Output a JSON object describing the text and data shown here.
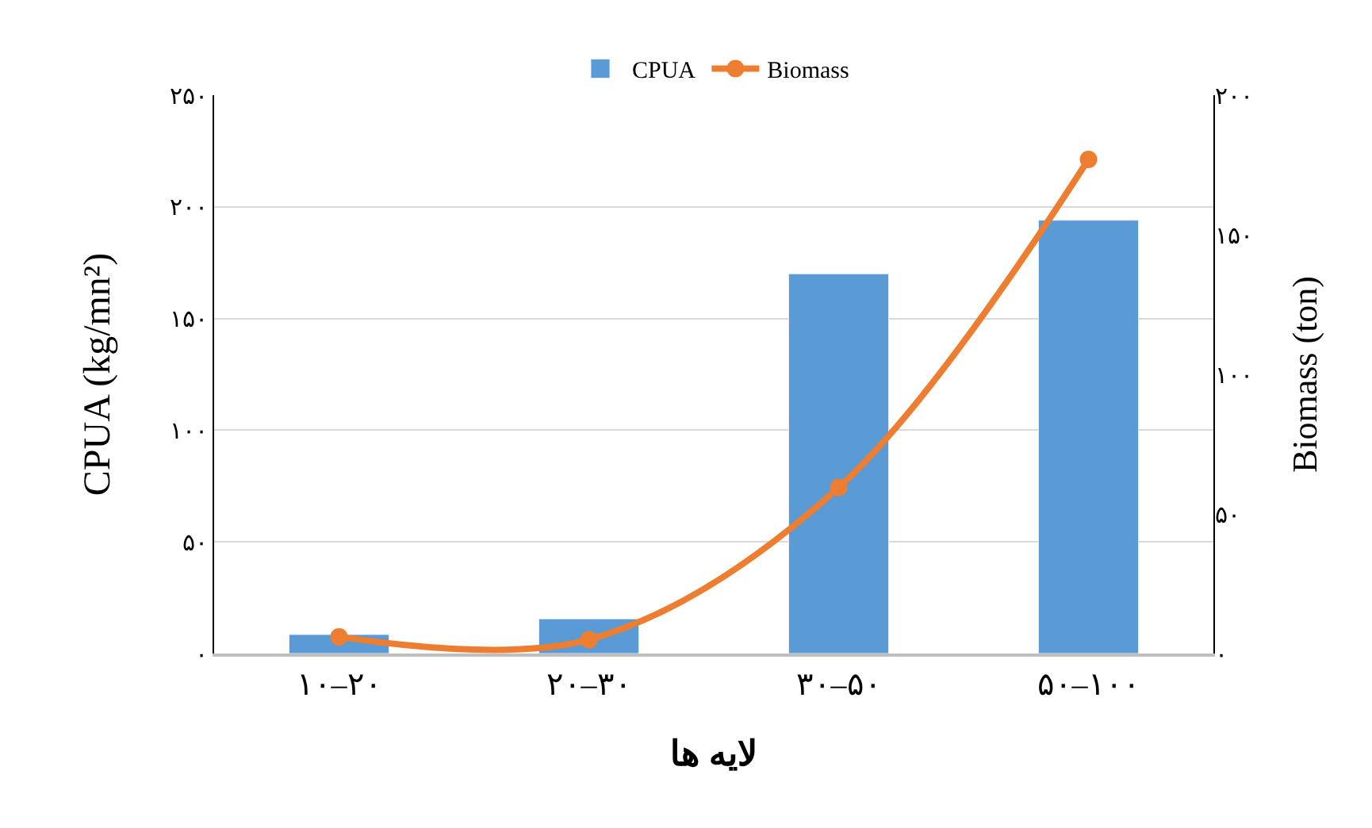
{
  "chart_data": {
    "type": "bar",
    "xlabel": "لایه ها",
    "ylabel": "CPUA (kg/mn²)",
    "y2label": "Biomass (ton)",
    "categories": [
      "۱۰–۲۰",
      "۲۰–۳۰",
      "۳۰–۵۰",
      "۵۰–۱۰۰"
    ],
    "series": [
      {
        "name": "CPUA",
        "color": "#5b9bd5",
        "values": [
          8.5,
          15.5,
          170,
          194
        ]
      },
      {
        "name": "Biomass",
        "type": "line",
        "axis": "y2",
        "color": "#ed7d31",
        "marker": "circle",
        "line_style": "solid",
        "values": [
          6,
          5,
          59.5,
          177
        ]
      }
    ],
    "ylim": [
      0,
      250
    ],
    "yticks": [
      {
        "value": 0,
        "label": "۰"
      },
      {
        "value": 50,
        "label": "۵۰"
      },
      {
        "value": 100,
        "label": "۱۰۰"
      },
      {
        "value": 150,
        "label": "۱۵۰"
      },
      {
        "value": 200,
        "label": "۲۰۰"
      },
      {
        "value": 250,
        "label": "۲۵۰"
      }
    ],
    "y2lim": [
      0,
      200
    ],
    "y2ticks": [
      {
        "value": 0,
        "label": "۰"
      },
      {
        "value": 50,
        "label": "۵۰"
      },
      {
        "value": 100,
        "label": "۱۰۰"
      },
      {
        "value": 150,
        "label": "۱۵۰"
      },
      {
        "value": 200,
        "label": "۲۰۰"
      }
    ],
    "grid": "y",
    "legend": "top"
  }
}
